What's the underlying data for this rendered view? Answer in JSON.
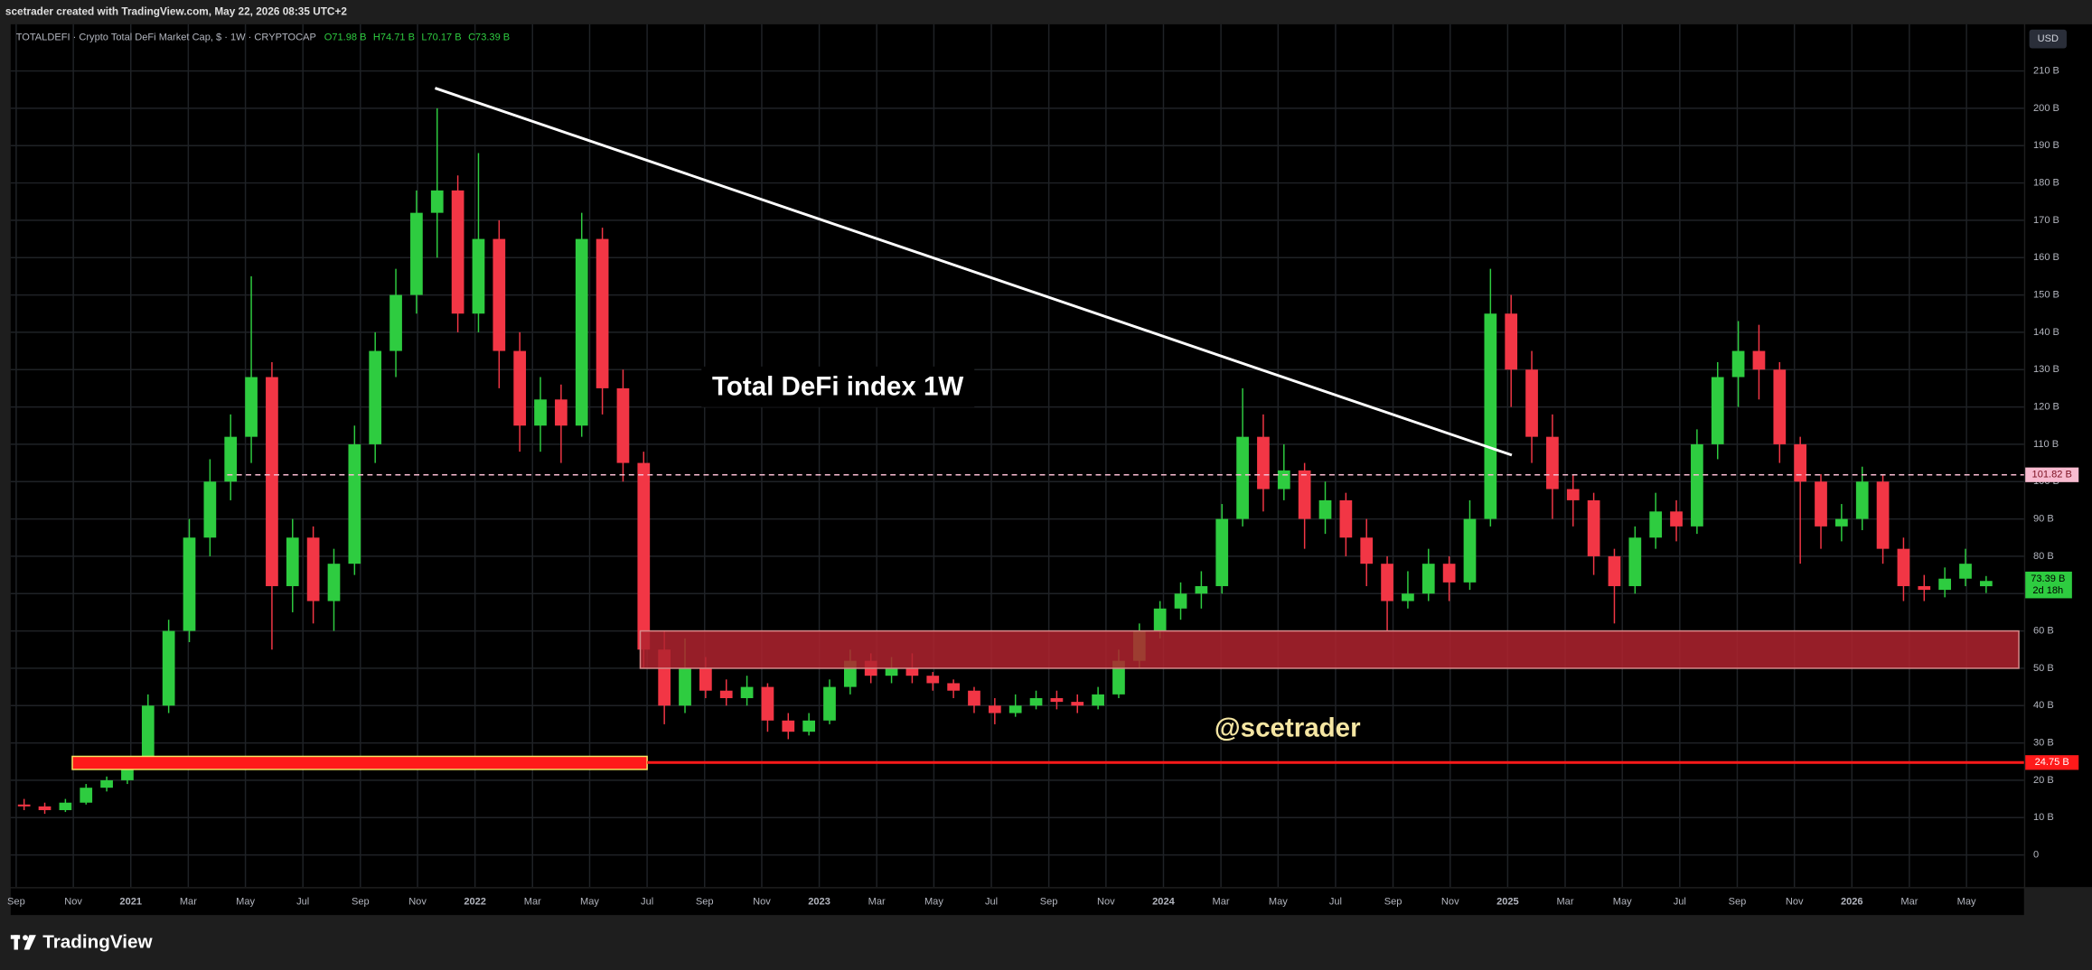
{
  "header": {
    "credit": "scetrader created with TradingView.com, May 22, 2026 08:35 UTC+2",
    "symbol": "TOTALDEFI · Crypto Total DeFi Market Cap, $ · 1W · CRYPTOCAP",
    "ohlc": [
      "O71.98 B",
      "H74.71 B",
      "L70.17 B",
      "C73.39 B"
    ]
  },
  "currency": "USD",
  "brand": "TradingView",
  "chart_data": {
    "type": "candlestick",
    "up_color": "#2ecc40",
    "down_color": "#f23645",
    "grid": true,
    "x": [
      2020.69,
      2020.75,
      2020.81,
      2020.87,
      2020.93,
      2020.99,
      2021.05,
      2021.11,
      2021.17,
      2021.23,
      2021.29,
      2021.35,
      2021.41,
      2021.47,
      2021.53,
      2021.59,
      2021.65,
      2021.71,
      2021.77,
      2021.83,
      2021.89,
      2021.95,
      2022.01,
      2022.07,
      2022.13,
      2022.19,
      2022.25,
      2022.31,
      2022.37,
      2022.43,
      2022.49,
      2022.55,
      2022.61,
      2022.67,
      2022.73,
      2022.79,
      2022.85,
      2022.91,
      2022.97,
      2023.03,
      2023.09,
      2023.15,
      2023.21,
      2023.27,
      2023.33,
      2023.39,
      2023.45,
      2023.51,
      2023.57,
      2023.63,
      2023.69,
      2023.75,
      2023.81,
      2023.87,
      2023.93,
      2023.99,
      2024.05,
      2024.11,
      2024.17,
      2024.23,
      2024.29,
      2024.35,
      2024.41,
      2024.47,
      2024.53,
      2024.59,
      2024.65,
      2024.71,
      2024.77,
      2024.83,
      2024.89,
      2024.95,
      2025.01,
      2025.07,
      2025.13,
      2025.19,
      2025.25,
      2025.31,
      2025.37,
      2025.43,
      2025.49,
      2025.55,
      2025.61,
      2025.67,
      2025.73,
      2025.79,
      2025.85,
      2025.91,
      2025.97,
      2026.03,
      2026.09,
      2026.15,
      2026.21,
      2026.27,
      2026.33,
      2026.39
    ],
    "open": [
      13.5,
      13,
      12,
      14,
      18,
      20,
      24,
      40,
      60,
      85,
      100,
      112,
      128,
      72,
      85,
      68,
      78,
      110,
      135,
      150,
      172,
      178,
      145,
      165,
      135,
      115,
      122,
      115,
      165,
      125,
      105,
      55,
      40,
      50,
      44,
      42,
      45,
      36,
      33,
      36,
      45,
      52,
      48,
      50,
      48,
      46,
      44,
      40,
      38,
      40,
      42,
      41,
      40,
      43,
      52,
      60,
      66,
      70,
      72,
      90,
      112,
      98,
      103,
      90,
      95,
      85,
      78,
      68,
      70,
      78,
      73,
      90,
      145,
      130,
      112,
      98,
      95,
      80,
      72,
      85,
      92,
      88,
      110,
      128,
      135,
      130,
      110,
      100,
      88,
      90,
      100,
      82,
      72,
      71,
      74,
      71.98
    ],
    "high": [
      15,
      14,
      15,
      19,
      21,
      26,
      43,
      63,
      90,
      106,
      118,
      155,
      132,
      90,
      88,
      82,
      115,
      140,
      157,
      178,
      200,
      182,
      188,
      170,
      140,
      128,
      126,
      172,
      168,
      130,
      108,
      60,
      58,
      53,
      47,
      48,
      46,
      38,
      38,
      47,
      55,
      54,
      53,
      54,
      49,
      47,
      45,
      42,
      43,
      44,
      44,
      43,
      45,
      55,
      62,
      68,
      73,
      76,
      94,
      125,
      118,
      110,
      105,
      100,
      97,
      90,
      80,
      76,
      82,
      80,
      95,
      157,
      150,
      135,
      118,
      102,
      97,
      82,
      88,
      97,
      95,
      114,
      132,
      143,
      142,
      132,
      112,
      102,
      94,
      104,
      102,
      85,
      75,
      77,
      82,
      74.71
    ],
    "low": [
      12,
      11,
      11.5,
      13.5,
      17,
      19,
      23,
      38,
      57,
      80,
      95,
      105,
      55,
      65,
      62,
      60,
      75,
      105,
      128,
      145,
      160,
      140,
      140,
      125,
      108,
      108,
      105,
      112,
      118,
      100,
      50,
      35,
      38,
      42,
      40,
      40,
      33,
      31,
      32,
      35,
      43,
      46,
      46,
      46,
      44,
      42,
      38,
      35,
      37,
      39,
      39,
      38,
      39,
      42,
      50,
      58,
      63,
      66,
      70,
      88,
      92,
      95,
      82,
      86,
      80,
      72,
      60,
      66,
      68,
      68,
      71,
      88,
      120,
      105,
      90,
      88,
      75,
      62,
      70,
      82,
      84,
      86,
      106,
      120,
      122,
      105,
      78,
      82,
      84,
      87,
      78,
      68,
      68,
      69,
      72,
      70.17
    ],
    "close": [
      13,
      12,
      14,
      18,
      20,
      24,
      40,
      60,
      85,
      100,
      112,
      128,
      72,
      85,
      68,
      78,
      110,
      135,
      150,
      172,
      178,
      145,
      165,
      135,
      115,
      122,
      115,
      165,
      125,
      105,
      55,
      40,
      50,
      44,
      42,
      45,
      36,
      33,
      36,
      45,
      52,
      48,
      50,
      48,
      46,
      44,
      40,
      38,
      40,
      42,
      41,
      40,
      43,
      52,
      60,
      66,
      70,
      72,
      90,
      112,
      98,
      103,
      90,
      95,
      85,
      78,
      68,
      70,
      78,
      73,
      90,
      145,
      130,
      112,
      98,
      95,
      80,
      72,
      85,
      92,
      88,
      110,
      128,
      135,
      130,
      110,
      100,
      88,
      90,
      100,
      82,
      72,
      71,
      74,
      78,
      73.39
    ],
    "xlim": [
      2020.651,
      2026.496
    ],
    "xticks": [
      {
        "value": 2020.667,
        "label": "Sep"
      },
      {
        "value": 2020.833,
        "label": "Nov"
      },
      2021,
      {
        "value": 2021.167,
        "label": "Mar"
      },
      {
        "value": 2021.333,
        "label": "May"
      },
      {
        "value": 2021.5,
        "label": "Jul"
      },
      {
        "value": 2021.667,
        "label": "Sep"
      },
      {
        "value": 2021.833,
        "label": "Nov"
      },
      2022,
      {
        "value": 2022.167,
        "label": "Mar"
      },
      {
        "value": 2022.333,
        "label": "May"
      },
      {
        "value": 2022.5,
        "label": "Jul"
      },
      {
        "value": 2022.667,
        "label": "Sep"
      },
      {
        "value": 2022.833,
        "label": "Nov"
      },
      2023,
      {
        "value": 2023.167,
        "label": "Mar"
      },
      {
        "value": 2023.333,
        "label": "May"
      },
      {
        "value": 2023.5,
        "label": "Jul"
      },
      {
        "value": 2023.667,
        "label": "Sep"
      },
      {
        "value": 2023.833,
        "label": "Nov"
      },
      2024,
      {
        "value": 2024.167,
        "label": "Mar"
      },
      {
        "value": 2024.333,
        "label": "May"
      },
      {
        "value": 2024.5,
        "label": "Jul"
      },
      {
        "value": 2024.667,
        "label": "Sep"
      },
      {
        "value": 2024.833,
        "label": "Nov"
      },
      2025,
      {
        "value": 2025.167,
        "label": "Mar"
      },
      {
        "value": 2025.333,
        "label": "May"
      },
      {
        "value": 2025.5,
        "label": "Jul"
      },
      {
        "value": 2025.667,
        "label": "Sep"
      },
      {
        "value": 2025.833,
        "label": "Nov"
      },
      2026,
      {
        "value": 2026.167,
        "label": "Mar"
      },
      {
        "value": 2026.333,
        "label": "May"
      }
    ],
    "ylim": [
      -8.6,
      222.5
    ],
    "yticks": [
      0,
      {
        "value": 10,
        "label": "10 B"
      },
      {
        "value": 20,
        "label": "20 B"
      },
      {
        "value": 30,
        "label": "30 B"
      },
      {
        "value": 40,
        "label": "40 B"
      },
      {
        "value": 50,
        "label": "50 B"
      },
      {
        "value": 60,
        "label": "60 B"
      },
      {
        "value": 70,
        "label": "70 B"
      },
      {
        "value": 80,
        "label": "80 B"
      },
      {
        "value": 90,
        "label": "90 B"
      },
      {
        "value": 100,
        "label": "100 B"
      },
      {
        "value": 110,
        "label": "110 B"
      },
      {
        "value": 120,
        "label": "120 B"
      },
      {
        "value": 130,
        "label": "130 B"
      },
      {
        "value": 140,
        "label": "140 B"
      },
      {
        "value": 150,
        "label": "150 B"
      },
      {
        "value": 160,
        "label": "160 B"
      },
      {
        "value": 170,
        "label": "170 B"
      },
      {
        "value": 180,
        "label": "180 B"
      },
      {
        "value": 190,
        "label": "190 B"
      },
      {
        "value": 200,
        "label": "200 B"
      },
      {
        "value": 210,
        "label": "210 B"
      }
    ],
    "zones": [
      {
        "x": [
          2022.48,
          2026.485
        ],
        "y": [
          50,
          60
        ],
        "fill": "#b0232f",
        "stroke": "#d98b8b"
      },
      {
        "x": [
          2020.83,
          2022.5
        ],
        "y": [
          22.9,
          26.4
        ],
        "fill": "#ff1a1a",
        "stroke": "#f5e663"
      }
    ],
    "trendline": {
      "x": [
        2021.884,
        2025.012
      ],
      "y": [
        205.4,
        107.1
      ],
      "color": "#ffffff"
    },
    "price_lines": [
      {
        "value": 101.82,
        "label": "101.82 B",
        "from": 2021.28,
        "color": "#f8bbd0",
        "style": "dashed"
      },
      {
        "value": 24.75,
        "label": "24.75 B",
        "from": 2022.5,
        "color": "#ff1a1a",
        "style": "solid"
      }
    ],
    "last_label": "73.39 B",
    "countdown": "2d 18h",
    "annotations": [
      "Total DeFi index 1W",
      "@scetrader"
    ]
  }
}
